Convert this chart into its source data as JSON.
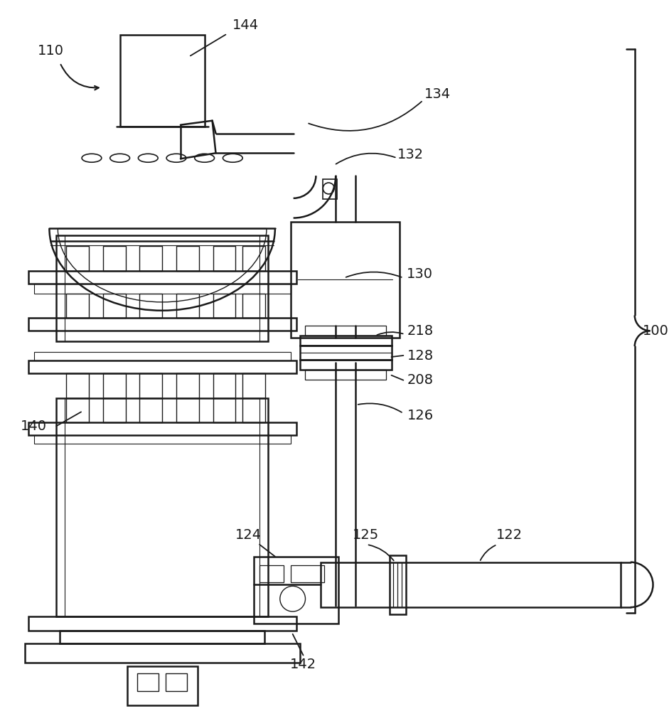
{
  "bg": "#ffffff",
  "lc": "#1a1a1a",
  "figsize": [
    9.41,
    10.0
  ],
  "dpi": 100
}
